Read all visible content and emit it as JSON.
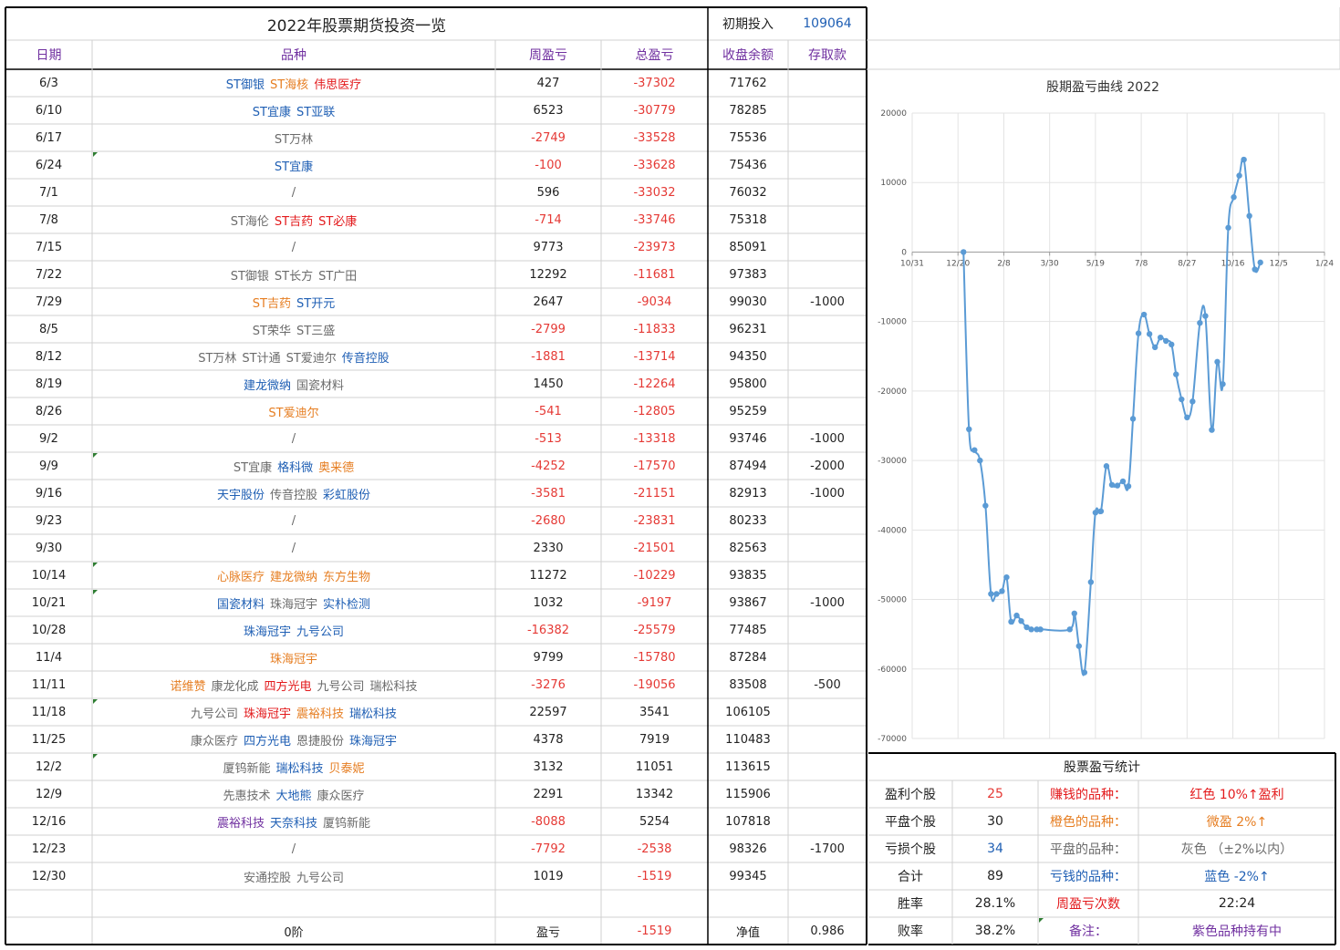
{
  "header": {
    "title": "2022年股票期货投资一览",
    "initial_label": "初期投入",
    "initial_value": "109064",
    "cols": [
      "日期",
      "品种",
      "周盈亏",
      "总盈亏",
      "收盘余额",
      "存取款"
    ]
  },
  "rows": [
    {
      "date": "6/3",
      "stocks": [
        {
          "n": "ST御银",
          "c": "blue"
        },
        {
          "n": "ST海核",
          "c": "orange"
        },
        {
          "n": "伟思医疗",
          "c": "red"
        }
      ],
      "week": "427",
      "total": "-37302",
      "balance": "71762",
      "deposit": ""
    },
    {
      "date": "6/10",
      "stocks": [
        {
          "n": "ST宜康",
          "c": "blue"
        },
        {
          "n": "ST亚联",
          "c": "blue"
        }
      ],
      "week": "6523",
      "total": "-30779",
      "balance": "78285",
      "deposit": ""
    },
    {
      "date": "6/17",
      "stocks": [
        {
          "n": "ST万林",
          "c": "gray"
        }
      ],
      "week": "-2749",
      "total": "-33528",
      "balance": "75536",
      "deposit": ""
    },
    {
      "date": "6/24",
      "stocks": [
        {
          "n": "ST宜康",
          "c": "blue"
        }
      ],
      "week": "-100",
      "total": "-33628",
      "balance": "75436",
      "deposit": ""
    },
    {
      "date": "7/1",
      "stocks": [
        {
          "n": "/",
          "c": "gray"
        }
      ],
      "week": "596",
      "total": "-33032",
      "balance": "76032",
      "deposit": ""
    },
    {
      "date": "7/8",
      "stocks": [
        {
          "n": "ST海伦",
          "c": "gray"
        },
        {
          "n": "ST吉药",
          "c": "red"
        },
        {
          "n": "ST必康",
          "c": "red"
        }
      ],
      "week": "-714",
      "total": "-33746",
      "balance": "75318",
      "deposit": ""
    },
    {
      "date": "7/15",
      "stocks": [
        {
          "n": "/",
          "c": "gray"
        }
      ],
      "week": "9773",
      "total": "-23973",
      "balance": "85091",
      "deposit": ""
    },
    {
      "date": "7/22",
      "stocks": [
        {
          "n": "ST御银",
          "c": "gray"
        },
        {
          "n": "ST长方",
          "c": "gray"
        },
        {
          "n": "ST广田",
          "c": "gray"
        }
      ],
      "week": "12292",
      "total": "-11681",
      "balance": "97383",
      "deposit": ""
    },
    {
      "date": "7/29",
      "stocks": [
        {
          "n": "ST吉药",
          "c": "orange"
        },
        {
          "n": "ST开元",
          "c": "blue"
        }
      ],
      "week": "2647",
      "total": "-9034",
      "balance": "99030",
      "deposit": "-1000"
    },
    {
      "date": "8/5",
      "stocks": [
        {
          "n": "ST荣华",
          "c": "gray"
        },
        {
          "n": "ST三盛",
          "c": "gray"
        }
      ],
      "week": "-2799",
      "total": "-11833",
      "balance": "96231",
      "deposit": ""
    },
    {
      "date": "8/12",
      "stocks": [
        {
          "n": "ST万林",
          "c": "gray"
        },
        {
          "n": "ST计通",
          "c": "gray"
        },
        {
          "n": "ST爱迪尔",
          "c": "gray"
        },
        {
          "n": "传音控股",
          "c": "blue"
        }
      ],
      "week": "-1881",
      "total": "-13714",
      "balance": "94350",
      "deposit": ""
    },
    {
      "date": "8/19",
      "stocks": [
        {
          "n": "建龙微纳",
          "c": "blue"
        },
        {
          "n": "国瓷材料",
          "c": "gray"
        }
      ],
      "week": "1450",
      "total": "-12264",
      "balance": "95800",
      "deposit": ""
    },
    {
      "date": "8/26",
      "stocks": [
        {
          "n": "ST爱迪尔",
          "c": "orange"
        }
      ],
      "week": "-541",
      "total": "-12805",
      "balance": "95259",
      "deposit": ""
    },
    {
      "date": "9/2",
      "stocks": [
        {
          "n": "/",
          "c": "gray"
        }
      ],
      "week": "-513",
      "total": "-13318",
      "balance": "93746",
      "deposit": "-1000"
    },
    {
      "date": "9/9",
      "stocks": [
        {
          "n": "ST宜康",
          "c": "gray"
        },
        {
          "n": "格科微",
          "c": "blue"
        },
        {
          "n": "奥来德",
          "c": "orange"
        }
      ],
      "week": "-4252",
      "total": "-17570",
      "balance": "87494",
      "deposit": "-2000"
    },
    {
      "date": "9/16",
      "stocks": [
        {
          "n": "天宇股份",
          "c": "blue"
        },
        {
          "n": "传音控股",
          "c": "gray"
        },
        {
          "n": "彩虹股份",
          "c": "blue"
        }
      ],
      "week": "-3581",
      "total": "-21151",
      "balance": "82913",
      "deposit": "-1000"
    },
    {
      "date": "9/23",
      "stocks": [
        {
          "n": "/",
          "c": "gray"
        }
      ],
      "week": "-2680",
      "total": "-23831",
      "balance": "80233",
      "deposit": ""
    },
    {
      "date": "9/30",
      "stocks": [
        {
          "n": "/",
          "c": "gray"
        }
      ],
      "week": "2330",
      "total": "-21501",
      "balance": "82563",
      "deposit": ""
    },
    {
      "date": "10/14",
      "stocks": [
        {
          "n": "心脉医疗",
          "c": "orange"
        },
        {
          "n": "建龙微纳",
          "c": "orange"
        },
        {
          "n": "东方生物",
          "c": "orange"
        }
      ],
      "week": "11272",
      "total": "-10229",
      "balance": "93835",
      "deposit": ""
    },
    {
      "date": "10/21",
      "stocks": [
        {
          "n": "国瓷材料",
          "c": "blue"
        },
        {
          "n": "珠海冠宇",
          "c": "gray"
        },
        {
          "n": "实朴检测",
          "c": "blue"
        }
      ],
      "week": "1032",
      "total": "-9197",
      "balance": "93867",
      "deposit": "-1000"
    },
    {
      "date": "10/28",
      "stocks": [
        {
          "n": "珠海冠宇",
          "c": "blue"
        },
        {
          "n": "九号公司",
          "c": "blue"
        }
      ],
      "week": "-16382",
      "total": "-25579",
      "balance": "77485",
      "deposit": ""
    },
    {
      "date": "11/4",
      "stocks": [
        {
          "n": "珠海冠宇",
          "c": "orange"
        }
      ],
      "week": "9799",
      "total": "-15780",
      "balance": "87284",
      "deposit": ""
    },
    {
      "date": "11/11",
      "stocks": [
        {
          "n": "诺维赞",
          "c": "orange"
        },
        {
          "n": "康龙化成",
          "c": "gray"
        },
        {
          "n": "四方光电",
          "c": "red"
        },
        {
          "n": "九号公司",
          "c": "gray"
        },
        {
          "n": "瑞松科技",
          "c": "gray"
        }
      ],
      "week": "-3276",
      "total": "-19056",
      "balance": "83508",
      "deposit": "-500"
    },
    {
      "date": "11/18",
      "stocks": [
        {
          "n": "九号公司",
          "c": "gray"
        },
        {
          "n": "珠海冠宇",
          "c": "red"
        },
        {
          "n": "震裕科技",
          "c": "orange"
        },
        {
          "n": "瑞松科技",
          "c": "blue"
        }
      ],
      "week": "22597",
      "total": "3541",
      "balance": "106105",
      "deposit": ""
    },
    {
      "date": "11/25",
      "stocks": [
        {
          "n": "康众医疗",
          "c": "gray"
        },
        {
          "n": "四方光电",
          "c": "blue"
        },
        {
          "n": "恩捷股份",
          "c": "gray"
        },
        {
          "n": "珠海冠宇",
          "c": "blue"
        }
      ],
      "week": "4378",
      "total": "7919",
      "balance": "110483",
      "deposit": ""
    },
    {
      "date": "12/2",
      "stocks": [
        {
          "n": "厦钨新能",
          "c": "gray"
        },
        {
          "n": "瑞松科技",
          "c": "blue"
        },
        {
          "n": "贝泰妮",
          "c": "orange"
        }
      ],
      "week": "3132",
      "total": "11051",
      "balance": "113615",
      "deposit": ""
    },
    {
      "date": "12/9",
      "stocks": [
        {
          "n": "先惠技术",
          "c": "gray"
        },
        {
          "n": "大地熊",
          "c": "blue"
        },
        {
          "n": "康众医疗",
          "c": "gray"
        }
      ],
      "week": "2291",
      "total": "13342",
      "balance": "115906",
      "deposit": ""
    },
    {
      "date": "12/16",
      "stocks": [
        {
          "n": "震裕科技",
          "c": "purple"
        },
        {
          "n": "天奈科技",
          "c": "blue"
        },
        {
          "n": "厦钨新能",
          "c": "gray"
        }
      ],
      "week": "-8088",
      "total": "5254",
      "balance": "107818",
      "deposit": ""
    },
    {
      "date": "12/23",
      "stocks": [
        {
          "n": "/",
          "c": "gray"
        }
      ],
      "week": "-7792",
      "total": "-2538",
      "balance": "98326",
      "deposit": "-1700"
    },
    {
      "date": "12/30",
      "stocks": [
        {
          "n": "安通控股",
          "c": "gray"
        },
        {
          "n": "九号公司",
          "c": "gray"
        }
      ],
      "week": "1019",
      "total": "-1519",
      "balance": "99345",
      "deposit": ""
    }
  ],
  "footer": {
    "level": "0阶",
    "pnl_label": "盈亏",
    "pnl_value": "-1519",
    "nav_label": "净值",
    "nav_value": "0.986"
  },
  "stats": {
    "title": "股票盈亏统计",
    "rows": [
      {
        "label": "盈利个股",
        "value": "25",
        "vcolor": "#e53935",
        "key": "赚钱的品种：",
        "kcolor": "#e31a1c",
        "desc": "红色 10%↑盈利",
        "dcolor": "#e31a1c"
      },
      {
        "label": "平盘个股",
        "value": "30",
        "vcolor": "#222",
        "key": "橙色的品种：",
        "kcolor": "#e67e22",
        "desc": "微盈 2%↑",
        "dcolor": "#e67e22"
      },
      {
        "label": "亏损个股",
        "value": "34",
        "vcolor": "#1f5fb4",
        "key": "平盘的品种：",
        "kcolor": "#6b6b6b",
        "desc": "灰色 （±2%以内）",
        "dcolor": "#6b6b6b"
      },
      {
        "label": "合计",
        "value": "89",
        "vcolor": "#222",
        "key": "亏钱的品种：",
        "kcolor": "#1f5fb4",
        "desc": "蓝色 -2%↑",
        "dcolor": "#1f5fb4"
      },
      {
        "label": "胜率",
        "value": "28.1%",
        "vcolor": "#222",
        "key": "周盈亏次数",
        "kcolor": "#e31a1c",
        "desc": "22:24",
        "dcolor": "#222"
      },
      {
        "label": "败率",
        "value": "38.2%",
        "vcolor": "#222",
        "key": "备注：",
        "kcolor": "#7030a0",
        "desc": "紫色品种持有中",
        "dcolor": "#7030a0"
      }
    ]
  },
  "colors": {
    "gray": "#6b6b6b",
    "blue": "#1f5fb4",
    "orange": "#e67e22",
    "red": "#e31a1c",
    "purple": "#7030a0",
    "line": "#5b9bd5"
  },
  "chart_data": {
    "type": "line",
    "title": "股期盈亏曲线 2022",
    "xlabel": "",
    "ylabel": "",
    "x_ticks": [
      "10/31",
      "12/20",
      "2/8",
      "3/30",
      "5/19",
      "7/8",
      "8/27",
      "10/16",
      "12/5",
      "1/24"
    ],
    "x_tick_days": [
      0,
      50,
      100,
      150,
      200,
      250,
      300,
      350,
      400,
      450
    ],
    "ylim": [
      -70000,
      20000
    ],
    "y_ticks": [
      20000,
      10000,
      0,
      -10000,
      -20000,
      -30000,
      -40000,
      -50000,
      -60000,
      -70000
    ],
    "grid": true,
    "points": [
      [
        56,
        0
      ],
      [
        62,
        -25500
      ],
      [
        68,
        -28500
      ],
      [
        74,
        -30000
      ],
      [
        80,
        -36500
      ],
      [
        86,
        -49200
      ],
      [
        92,
        -49200
      ],
      [
        98,
        -48800
      ],
      [
        103,
        -46800
      ],
      [
        108,
        -53200
      ],
      [
        114,
        -52300
      ],
      [
        119,
        -53100
      ],
      [
        125,
        -54000
      ],
      [
        130,
        -54300
      ],
      [
        136,
        -54300
      ],
      [
        140,
        -54300
      ],
      [
        172,
        -54300
      ],
      [
        177,
        -52000
      ],
      [
        182,
        -56700
      ],
      [
        188,
        -60500
      ],
      [
        195,
        -47500
      ],
      [
        200,
        -37500
      ],
      [
        206,
        -37300
      ],
      [
        212,
        -30800
      ],
      [
        218,
        -33500
      ],
      [
        224,
        -33600
      ],
      [
        230,
        -33000
      ],
      [
        236,
        -33700
      ],
      [
        241,
        -24000
      ],
      [
        247,
        -11700
      ],
      [
        253,
        -9000
      ],
      [
        259,
        -11800
      ],
      [
        265,
        -13700
      ],
      [
        271,
        -12300
      ],
      [
        277,
        -12800
      ],
      [
        283,
        -13300
      ],
      [
        288,
        -17600
      ],
      [
        294,
        -21200
      ],
      [
        300,
        -23800
      ],
      [
        306,
        -21500
      ],
      [
        314,
        -10200
      ],
      [
        320,
        -9200
      ],
      [
        327,
        -25600
      ],
      [
        333,
        -15800
      ],
      [
        339,
        -19000
      ],
      [
        345,
        3500
      ],
      [
        351,
        7900
      ],
      [
        357,
        11000
      ],
      [
        362,
        13300
      ],
      [
        368,
        5200
      ],
      [
        374,
        -2500
      ],
      [
        380,
        -1500
      ]
    ]
  }
}
